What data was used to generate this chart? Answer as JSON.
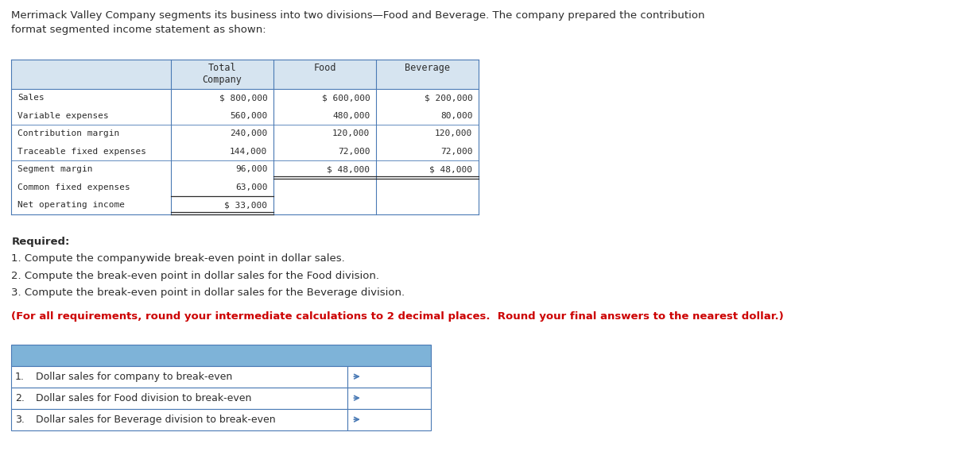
{
  "intro_text": "Merrimack Valley Company segments its business into two divisions—Food and Beverage. The company prepared the contribution\nformat segmented income statement as shown:",
  "table_headers": [
    "",
    "Total\nCompany",
    "Food",
    "Beverage"
  ],
  "table_rows": [
    [
      "Sales",
      "$ 800,000",
      "$ 600,000",
      "$ 200,000"
    ],
    [
      "Variable expenses",
      "560,000",
      "480,000",
      "80,000"
    ],
    [
      "Contribution margin",
      "240,000",
      "120,000",
      "120,000"
    ],
    [
      "Traceable fixed expenses",
      "144,000",
      "72,000",
      "72,000"
    ],
    [
      "Segment margin",
      "96,000",
      "$ 48,000",
      "$ 48,000"
    ],
    [
      "Common fixed expenses",
      "63,000",
      "",
      ""
    ],
    [
      "Net operating income",
      "$ 33,000",
      "",
      ""
    ]
  ],
  "required_title": "Required:",
  "required_items": [
    "1. Compute the companywide break-even point in dollar sales.",
    "2. Compute the break-even point in dollar sales for the Food division.",
    "3. Compute the break-even point in dollar sales for the Beverage division."
  ],
  "note_text": "(For all requirements, round your intermediate calculations to 2 decimal places.  Round your final answers to the nearest dollar.)",
  "answer_rows": [
    [
      "1.",
      "Dollar sales for company to break-even"
    ],
    [
      "2.",
      "Dollar sales for Food division to break-even"
    ],
    [
      "3.",
      "Dollar sales for Beverage division to break-even"
    ]
  ],
  "header_bg": "#7eb3d8",
  "table_border": "#4a7ab5",
  "income_header_bg": "#d6e4f0",
  "text_color_main": "#2c2c2c",
  "text_color_red": "#cc0000",
  "mono_font": "monospace",
  "body_font": "sans-serif",
  "bg_color": "#ffffff"
}
